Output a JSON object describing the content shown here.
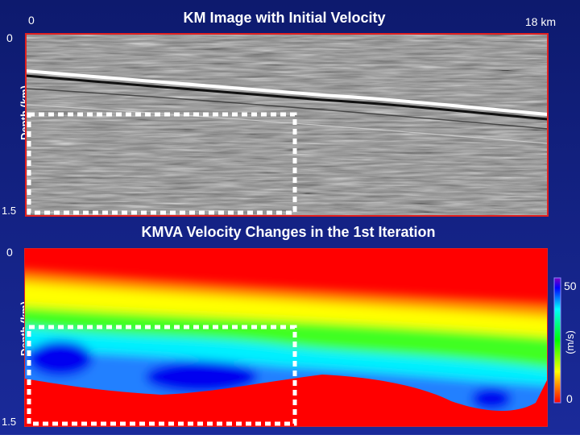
{
  "top_panel": {
    "title": "KM Image with Initial Velocity",
    "x_start": "0",
    "x_end": "18 km",
    "depth_top": "0",
    "depth_label": "Depth (km)",
    "depth_bottom": "1.5"
  },
  "bottom_panel": {
    "title": "KMVA Velocity Changes in the 1st Iteration",
    "depth_top": "0",
    "depth_label": "Depth (km)",
    "depth_bottom": "1.5",
    "colorbar": {
      "max": "50",
      "unit": "(m/s)",
      "min": "0"
    }
  }
}
